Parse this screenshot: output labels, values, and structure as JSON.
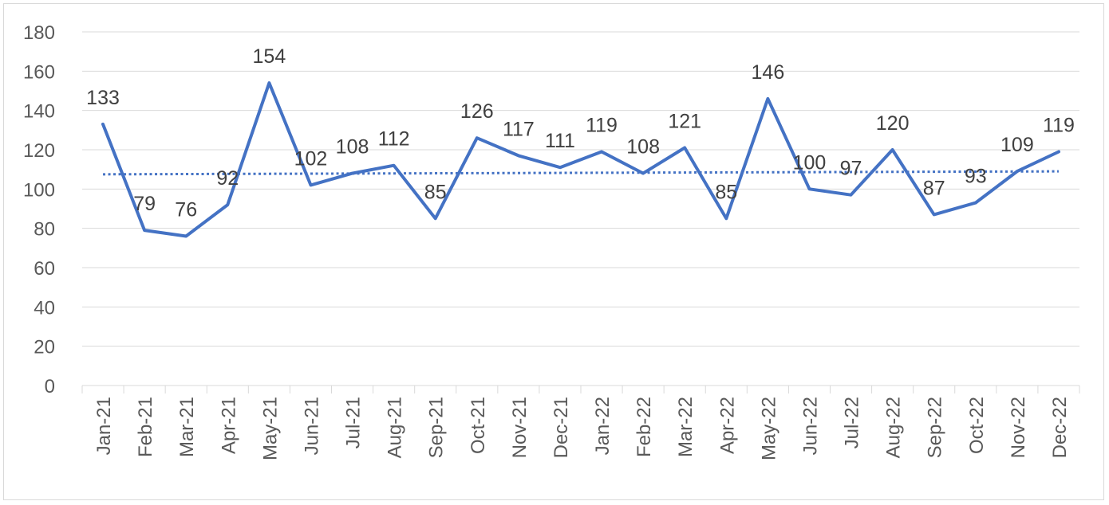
{
  "chart_data": {
    "type": "line",
    "categories": [
      "Jan-21",
      "Feb-21",
      "Mar-21",
      "Apr-21",
      "May-21",
      "Jun-21",
      "Jul-21",
      "Aug-21",
      "Sep-21",
      "Oct-21",
      "Nov-21",
      "Dec-21",
      "Jan-22",
      "Feb-22",
      "Mar-22",
      "Apr-22",
      "May-22",
      "Jun-22",
      "Jul-22",
      "Aug-22",
      "Sep-22",
      "Oct-22",
      "Nov-22",
      "Dec-22"
    ],
    "series": [
      {
        "values": [
          133,
          79,
          76,
          92,
          154,
          102,
          108,
          112,
          85,
          126,
          117,
          111,
          119,
          108,
          121,
          85,
          146,
          100,
          97,
          120,
          87,
          93,
          109,
          119
        ],
        "color": "#4472c4",
        "data_labels": [
          "133",
          "79",
          "76",
          "92",
          "154",
          "102",
          "108",
          "112",
          "85",
          "126",
          "117",
          "111",
          "119",
          "108",
          "121",
          "85",
          "146",
          "100",
          "97",
          "120",
          "87",
          "93",
          "109",
          "119"
        ]
      }
    ],
    "trendline": {
      "type": "linear",
      "style": "dotted",
      "color": "#4472c4",
      "start": 107.5,
      "end": 109
    },
    "title": "",
    "xlabel": "",
    "ylabel": "",
    "ylim": [
      0,
      180
    ],
    "y_ticks": [
      "0",
      "20",
      "40",
      "60",
      "80",
      "100",
      "120",
      "140",
      "160",
      "180"
    ],
    "grid": true,
    "legend": "none"
  }
}
